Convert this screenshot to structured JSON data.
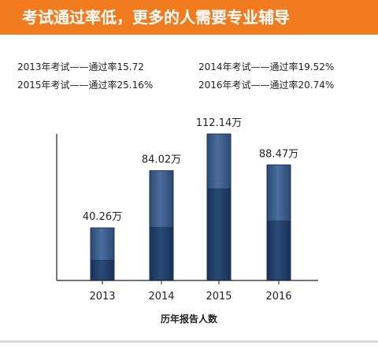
{
  "banner": {
    "title": "考试通过率低，更多的人需要专业辅导",
    "background": "#f07c1f"
  },
  "stats": [
    {
      "text": "2013年考试——通过率15.72"
    },
    {
      "text": "2014年考试——通过率19.52%"
    },
    {
      "text": "2015年考试——通过率25.16%"
    },
    {
      "text": "2016年考试——通过率20.74%"
    }
  ],
  "chart_data": {
    "type": "bar",
    "title": "",
    "xlabel": "历年报告人数",
    "ylabel": "",
    "categories": [
      "2013",
      "2014",
      "2015",
      "2016"
    ],
    "values": [
      40.26,
      84.02,
      112.14,
      88.47
    ],
    "value_labels": [
      "40.26万",
      "84.02万",
      "112.14万",
      "88.47万"
    ],
    "pass_rates": [
      15.72,
      19.52,
      25.16,
      20.74
    ],
    "ylim": [
      0,
      112.14
    ],
    "grid": false,
    "legend": "none",
    "colors": {
      "bar": "#3a5a86",
      "bar_dark": "#1e3a63"
    }
  }
}
